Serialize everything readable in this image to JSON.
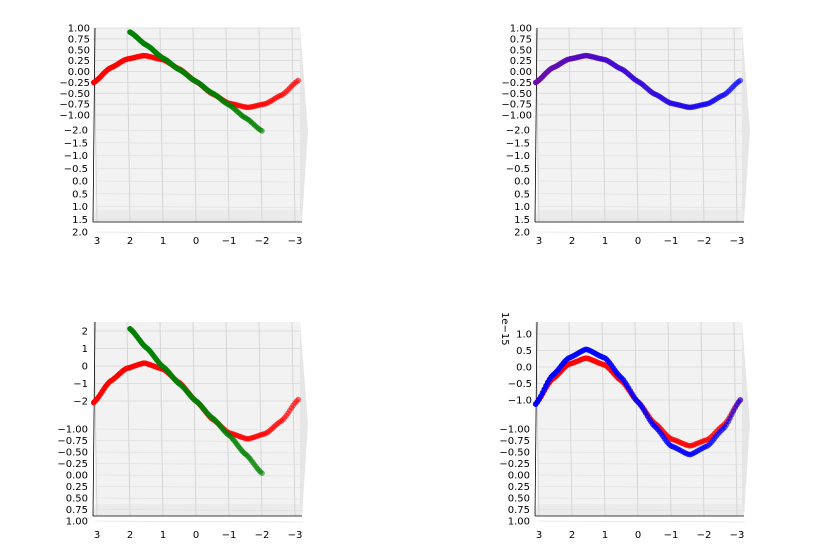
{
  "figure": {
    "panel_count": 4
  },
  "chart_data": [
    {
      "type": "scatter",
      "panel": "top-left",
      "projection": "3d",
      "grid": true,
      "xticks": [
        "3",
        "2",
        "1",
        "0",
        "−1",
        "−2",
        "−3"
      ],
      "zticks": [
        "1.00",
        "0.75",
        "0.50",
        "0.25",
        "0.00",
        "−0.25",
        "−0.50",
        "−0.75",
        "−1.00"
      ],
      "yticks": [
        "−2.0",
        "−1.5",
        "−1.0",
        "−0.5",
        "0.0",
        "0.5",
        "1.0",
        "1.5",
        "2.0"
      ],
      "xlim": [
        -3,
        3
      ],
      "series": [
        {
          "color": "#ff0000",
          "x": [
            -3.1,
            -2.6,
            -2.1,
            -1.57,
            -1.0,
            -0.5,
            0,
            0.5,
            1.0,
            1.57,
            2.1,
            2.6,
            3.1
          ],
          "z": [
            0.04,
            -0.52,
            -0.86,
            -1.0,
            -0.84,
            -0.48,
            0,
            0.48,
            0.84,
            1.0,
            0.86,
            0.52,
            -0.04
          ]
        },
        {
          "color": "#008000",
          "x": [
            -2.0,
            -1.5,
            -1.0,
            -0.5,
            0,
            0.5,
            1.0,
            1.5,
            2.0
          ],
          "z": [
            -1.9,
            -1.4,
            -0.9,
            -0.45,
            0,
            0.45,
            0.9,
            1.4,
            1.9
          ]
        }
      ]
    },
    {
      "type": "scatter",
      "panel": "top-right",
      "projection": "3d",
      "grid": true,
      "xticks": [
        "3",
        "2",
        "1",
        "0",
        "−1",
        "−2",
        "−3"
      ],
      "zticks": [
        "1.00",
        "0.75",
        "0.50",
        "0.25",
        "0.00",
        "−0.25",
        "−0.50",
        "−0.75",
        "−1.00"
      ],
      "yticks": [
        "−2.0",
        "−1.5",
        "−1.0",
        "−0.5",
        "0.0",
        "0.5",
        "1.0",
        "1.5",
        "2.0"
      ],
      "xlim": [
        -3,
        3
      ],
      "series": [
        {
          "color": "#0000ff",
          "color_end": "#6a0dad",
          "x": [
            -3.1,
            -2.6,
            -2.1,
            -1.57,
            -1.0,
            -0.5,
            0,
            0.5,
            1.0,
            1.57,
            2.1,
            2.6,
            3.1
          ],
          "z": [
            0.04,
            -0.52,
            -0.86,
            -1.0,
            -0.84,
            -0.48,
            0,
            0.48,
            0.84,
            1.0,
            0.86,
            0.52,
            -0.04
          ]
        }
      ]
    },
    {
      "type": "scatter",
      "panel": "bottom-left",
      "projection": "3d",
      "grid": true,
      "xticks": [
        "3",
        "2",
        "1",
        "0",
        "−1",
        "−2",
        "−3"
      ],
      "zticks": [
        "2",
        "1",
        "0",
        "−1",
        "−2"
      ],
      "yticks": [
        "−1.00",
        "−0.75",
        "−0.50",
        "−0.25",
        "0.00",
        "0.25",
        "0.50",
        "0.75",
        "1.00"
      ],
      "xlim": [
        -3,
        3
      ],
      "series": [
        {
          "color": "#ff0000",
          "x": [
            -3.1,
            -2.6,
            -2.1,
            -1.57,
            -1.0,
            -0.5,
            0,
            0.5,
            1.0,
            1.57,
            2.1,
            2.6,
            3.1
          ],
          "z": [
            0.04,
            -0.52,
            -0.86,
            -1.0,
            -0.84,
            -0.48,
            0,
            0.48,
            0.84,
            1.0,
            0.86,
            0.52,
            -0.04
          ]
        },
        {
          "color": "#008000",
          "x": [
            -2.0,
            -1.5,
            -1.0,
            -0.5,
            0,
            0.5,
            1.0,
            1.5,
            2.0
          ],
          "z": [
            -1.9,
            -1.4,
            -0.9,
            -0.45,
            0,
            0.45,
            0.9,
            1.4,
            1.9
          ]
        }
      ]
    },
    {
      "type": "scatter",
      "panel": "bottom-right",
      "projection": "3d",
      "grid": true,
      "offset_label": "1e−15",
      "xticks": [
        "3",
        "2",
        "1",
        "0",
        "−1",
        "−2",
        "−3"
      ],
      "zticks": [
        "1.0",
        "0.5",
        "0.0",
        "−0.5",
        "−1.0"
      ],
      "yticks": [
        "−1.00",
        "−0.75",
        "−0.50",
        "−0.25",
        "0.00",
        "0.25",
        "0.50",
        "0.75",
        "1.00"
      ],
      "xlim": [
        -3,
        3
      ],
      "series": [
        {
          "color": "#ff0000",
          "x": [
            -3.1,
            -2.6,
            -2.1,
            -1.57,
            -1.0,
            -0.5,
            0,
            0.5,
            1.0,
            1.57,
            2.1,
            2.6,
            3.1
          ],
          "z": [
            0.04,
            -0.52,
            -0.86,
            -1.0,
            -0.84,
            -0.48,
            0,
            0.48,
            0.84,
            1.0,
            0.86,
            0.52,
            -0.04
          ]
        },
        {
          "color": "#0000ff",
          "x": [
            -3.1,
            -2.6,
            -2.1,
            -1.57,
            -1.0,
            -0.5,
            0,
            0.5,
            1.0,
            1.57,
            2.1,
            2.6,
            3.1
          ],
          "z": [
            0.05,
            -0.6,
            -1.0,
            -1.2,
            -1.0,
            -0.55,
            0,
            0.55,
            1.0,
            1.2,
            1.0,
            0.6,
            -0.05
          ]
        }
      ]
    }
  ]
}
